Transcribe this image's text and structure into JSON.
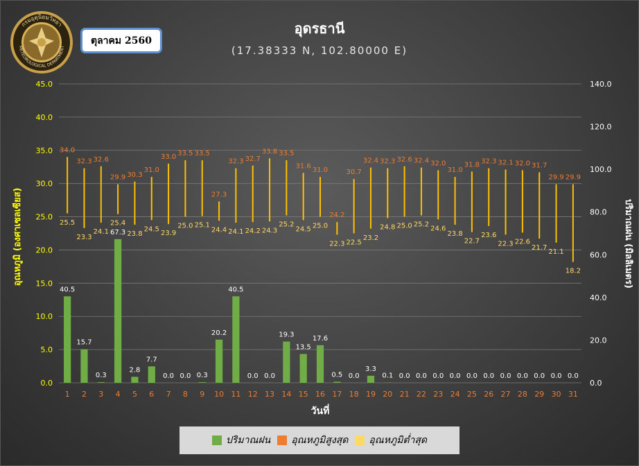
{
  "header": {
    "month_label": "ตุลาคม 2560",
    "title": "อุดรธานี",
    "subtitle": "(17.38333 N, 102.80000 E)",
    "seal_text": "กรมอุตุนิยมวิทยา METEOROLOGICAL DEPARTMENT"
  },
  "legend": {
    "rain": "ปริมาณฝน",
    "tmax": "อุณหภูมิสูงสุด",
    "tmin": "อุณหภูมิต่ำสุด"
  },
  "colors": {
    "rain": "#70ad47",
    "tmax": "#ed7d31",
    "tmin": "#ffd966",
    "range_line": "#ffc000",
    "left_axis_text": "#ffff00",
    "right_axis_text": "#ffffff",
    "x_tick_text": "#ed7d31"
  },
  "chart_data": {
    "type": "bar",
    "xlabel": "วันที่",
    "ylabel_left": "อุณหภูมิ (องศาเซลเซียส)",
    "ylabel_right": "ปริมาณฝน (มิลลิเมตร)",
    "ylim_left": [
      0,
      45
    ],
    "ylim_right": [
      0,
      140
    ],
    "yticks_left": [
      "0.0",
      "5.0",
      "10.0",
      "15.0",
      "20.0",
      "25.0",
      "30.0",
      "35.0",
      "40.0",
      "45.0"
    ],
    "yticks_right": [
      "0.0",
      "20.0",
      "40.0",
      "60.0",
      "80.0",
      "100.0",
      "120.0",
      "140.0"
    ],
    "grid": true,
    "legend_position": "bottom",
    "categories": [
      "1",
      "2",
      "3",
      "4",
      "5",
      "6",
      "7",
      "8",
      "9",
      "10",
      "11",
      "12",
      "13",
      "14",
      "15",
      "16",
      "17",
      "18",
      "19",
      "20",
      "21",
      "22",
      "23",
      "24",
      "25",
      "26",
      "27",
      "28",
      "29",
      "30",
      "31"
    ],
    "series": [
      {
        "name": "ปริมาณฝน",
        "axis": "right",
        "values": [
          40.5,
          15.7,
          0.3,
          67.3,
          2.8,
          7.7,
          0.0,
          0.0,
          0.3,
          20.2,
          40.5,
          0.0,
          0.0,
          19.3,
          13.5,
          17.6,
          0.5,
          0.0,
          3.3,
          0.1,
          0.0,
          0.0,
          0.0,
          0.0,
          0.0,
          0.0,
          0.0,
          0.0,
          0.0,
          0.0,
          0.0
        ]
      },
      {
        "name": "อุณหภูมิสูงสุด",
        "axis": "left",
        "values": [
          34.0,
          32.3,
          32.6,
          29.9,
          30.3,
          31.0,
          33.0,
          33.5,
          33.5,
          27.3,
          32.3,
          32.7,
          33.8,
          33.5,
          31.6,
          31.0,
          24.2,
          30.7,
          32.4,
          32.3,
          32.6,
          32.4,
          32.0,
          31.0,
          31.8,
          32.3,
          32.1,
          32.0,
          31.7,
          29.9,
          29.9
        ]
      },
      {
        "name": "อุณหภูมิต่ำสุด",
        "axis": "left",
        "values": [
          25.5,
          23.3,
          24.1,
          25.4,
          23.8,
          24.5,
          23.9,
          25.0,
          25.1,
          24.4,
          24.1,
          24.2,
          24.3,
          25.2,
          24.5,
          25.0,
          22.3,
          22.5,
          23.2,
          24.8,
          25.0,
          25.2,
          24.6,
          23.8,
          22.7,
          23.6,
          22.3,
          22.6,
          21.7,
          21.1,
          18.2
        ]
      }
    ]
  }
}
